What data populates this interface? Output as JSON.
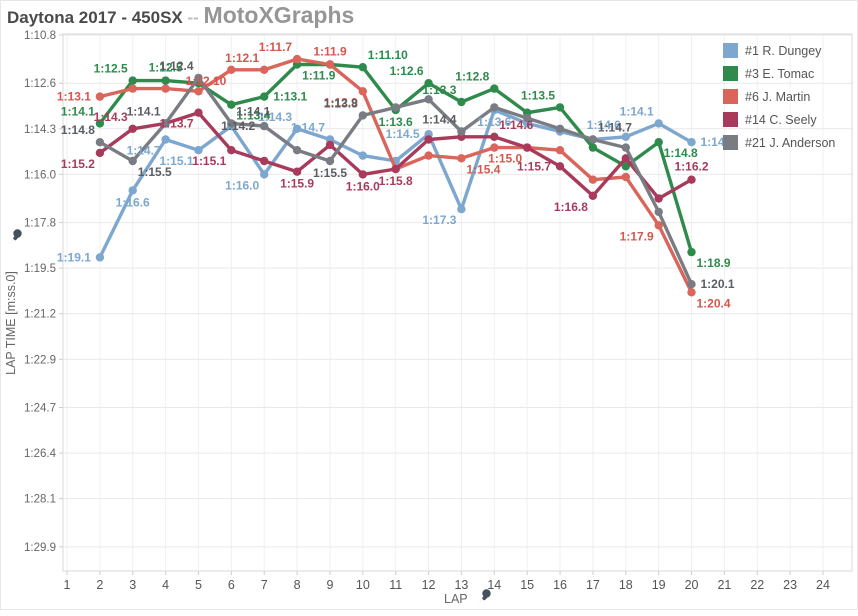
{
  "header": {
    "title_main": "Daytona 2017 - 450SX",
    "title_sep": " -- ",
    "title_brand": "MotoXGraphs"
  },
  "axes": {
    "x_title": "LAP",
    "y_title": "LAP TIME [m:ss.0]",
    "x_ticks": [
      1,
      2,
      3,
      4,
      5,
      6,
      7,
      8,
      9,
      10,
      11,
      12,
      13,
      14,
      15,
      16,
      17,
      18,
      19,
      20,
      21,
      22,
      23,
      24
    ],
    "y_ticks": [
      {
        "label": "1:10.8",
        "seconds": 70.8
      },
      {
        "label": "1:12.6",
        "seconds": 72.6
      },
      {
        "label": "1:14.3",
        "seconds": 74.3
      },
      {
        "label": "1:16.0",
        "seconds": 76.0
      },
      {
        "label": "1:17.8",
        "seconds": 77.8
      },
      {
        "label": "1:19.5",
        "seconds": 79.5
      },
      {
        "label": "1:21.2",
        "seconds": 81.2
      },
      {
        "label": "1:22.9",
        "seconds": 82.9
      },
      {
        "label": "1:24.7",
        "seconds": 84.7
      },
      {
        "label": "1:26.4",
        "seconds": 86.4
      },
      {
        "label": "1:28.1",
        "seconds": 88.1
      },
      {
        "label": "1:29.9",
        "seconds": 89.9
      }
    ]
  },
  "legend": {
    "items": [
      {
        "id": "dungey",
        "label": "#1 R. Dungey",
        "color": "#7DA7CE"
      },
      {
        "id": "tomac",
        "label": "#3 E. Tomac",
        "color": "#2E8B4C"
      },
      {
        "id": "martin",
        "label": "#6 J. Martin",
        "color": "#D9655B"
      },
      {
        "id": "seely",
        "label": "#14 C. Seely",
        "color": "#A83A5B"
      },
      {
        "id": "anderson",
        "label": "#21 J. Anderson",
        "color": "#797C82"
      }
    ]
  },
  "chart_data": {
    "type": "line",
    "title": "Daytona 2017 - 450SX",
    "xlabel": "LAP",
    "ylabel": "LAP TIME [m:ss.0]",
    "x_range": [
      1,
      24
    ],
    "y_axis_note": "lap time in seconds; axis runs fastest (70.8s = 1:10.8) at top to slowest (89.9s = 1:29.9) at bottom; laps plotted 2-20",
    "grid": true,
    "legend_position": "top-right overlay",
    "series": [
      {
        "id": "dungey",
        "name": "#1 R. Dungey",
        "color": "#7DA7CE",
        "label_color": "#7DA7CE",
        "points": [
          [
            2,
            79.1,
            "1:19.1",
            "left"
          ],
          [
            3,
            76.6,
            "1:16.6",
            "below"
          ],
          [
            4,
            74.7,
            "1:14.7",
            "below-left"
          ],
          [
            5,
            75.1,
            "1:15.1",
            "below-left"
          ],
          [
            6,
            74.2,
            "",
            ""
          ],
          [
            7,
            76.0,
            "1:16.0",
            "below-left"
          ],
          [
            8,
            74.3,
            "1:14.3",
            "above-left"
          ],
          [
            9,
            74.7,
            "1:14.7",
            "above-left"
          ],
          [
            10,
            75.3,
            "",
            ""
          ],
          [
            11,
            75.5,
            "",
            ""
          ],
          [
            12,
            74.5,
            "1:14.5",
            "left"
          ],
          [
            13,
            77.3,
            "1:17.3",
            "below-left"
          ],
          [
            14,
            73.6,
            "1:13.6",
            "below"
          ],
          [
            15,
            74.1,
            "",
            ""
          ],
          [
            16,
            74.4,
            "",
            ""
          ],
          [
            17,
            74.7,
            "",
            ""
          ],
          [
            18,
            74.6,
            "1:14.6",
            "above-left"
          ],
          [
            19,
            74.1,
            "1:14.1",
            "above-left"
          ],
          [
            20,
            74.8,
            "1:14.8",
            "right"
          ]
        ]
      },
      {
        "id": "tomac",
        "name": "#3 E. Tomac",
        "color": "#2E8B4C",
        "label_color": "#2E8B4C",
        "points": [
          [
            2,
            74.1,
            "1:14.1",
            "above-left"
          ],
          [
            3,
            72.5,
            "1:12.5",
            "above-left"
          ],
          [
            4,
            72.5,
            "1:12.5",
            "above"
          ],
          [
            5,
            72.6,
            "",
            ""
          ],
          [
            6,
            73.4,
            "1:13.4",
            "below-right"
          ],
          [
            7,
            73.1,
            "1:13.1",
            "right"
          ],
          [
            8,
            71.9,
            "1:11.9",
            "below-right"
          ],
          [
            9,
            71.9,
            "",
            ""
          ],
          [
            10,
            72.0,
            "1:11.10",
            "above-right"
          ],
          [
            11,
            73.6,
            "1:13.6",
            "below"
          ],
          [
            12,
            72.6,
            "1:12.6",
            "above-left"
          ],
          [
            13,
            73.3,
            "1:13.3",
            "above-left"
          ],
          [
            14,
            72.8,
            "1:12.8",
            "above-left"
          ],
          [
            15,
            73.7,
            "",
            ""
          ],
          [
            16,
            73.5,
            "1:13.5",
            "above-left"
          ],
          [
            17,
            75.0,
            "",
            ""
          ],
          [
            18,
            75.7,
            "",
            ""
          ],
          [
            19,
            74.8,
            "1:14.8",
            "below-right"
          ],
          [
            20,
            78.9,
            "1:18.9",
            "below-right"
          ]
        ]
      },
      {
        "id": "martin",
        "name": "#6 J. Martin",
        "color": "#D9655B",
        "label_color": "#D4574D",
        "points": [
          [
            2,
            73.1,
            "1:13.1",
            "left"
          ],
          [
            3,
            72.8,
            "",
            ""
          ],
          [
            4,
            72.8,
            "",
            ""
          ],
          [
            5,
            72.9,
            "",
            ""
          ],
          [
            6,
            72.1,
            "1:12.10",
            "below-left"
          ],
          [
            7,
            72.1,
            "1:12.1",
            "above-left"
          ],
          [
            8,
            71.7,
            "1:11.7",
            "above-left"
          ],
          [
            9,
            71.9,
            "1:11.9",
            "above"
          ],
          [
            10,
            72.9,
            "1:12.9",
            "below-left"
          ],
          [
            11,
            75.8,
            "",
            ""
          ],
          [
            12,
            75.3,
            "",
            ""
          ],
          [
            13,
            75.4,
            "1:15.4",
            "below-right"
          ],
          [
            14,
            75.0,
            "",
            ""
          ],
          [
            15,
            75.0,
            "1:15.0",
            "below-left"
          ],
          [
            16,
            75.1,
            "",
            ""
          ],
          [
            17,
            76.2,
            "",
            ""
          ],
          [
            18,
            76.1,
            "",
            ""
          ],
          [
            19,
            77.9,
            "1:17.9",
            "below-left"
          ],
          [
            20,
            80.4,
            "1:20.4",
            "below-right"
          ]
        ]
      },
      {
        "id": "seely",
        "name": "#14 C. Seely",
        "color": "#A83A5B",
        "label_color": "#A83A5B",
        "points": [
          [
            2,
            75.2,
            "1:15.2",
            "below-left"
          ],
          [
            3,
            74.3,
            "1:14.3",
            "above-left"
          ],
          [
            4,
            74.1,
            "",
            ""
          ],
          [
            5,
            73.7,
            "1:13.7",
            "below-left"
          ],
          [
            6,
            75.1,
            "1:15.1",
            "below-left"
          ],
          [
            7,
            75.5,
            "",
            ""
          ],
          [
            8,
            75.9,
            "1:15.9",
            "below"
          ],
          [
            9,
            74.9,
            "",
            ""
          ],
          [
            10,
            76.0,
            "1:16.0",
            "below"
          ],
          [
            11,
            75.8,
            "1:15.8",
            "below"
          ],
          [
            12,
            74.7,
            "",
            ""
          ],
          [
            13,
            74.6,
            "",
            ""
          ],
          [
            14,
            74.6,
            "1:14.6",
            "above-right"
          ],
          [
            15,
            75.0,
            "",
            ""
          ],
          [
            16,
            75.7,
            "1:15.7",
            "left"
          ],
          [
            17,
            76.8,
            "1:16.8",
            "below-left"
          ],
          [
            18,
            75.4,
            "",
            ""
          ],
          [
            19,
            76.9,
            "",
            ""
          ],
          [
            20,
            76.2,
            "1:16.2",
            "above"
          ]
        ]
      },
      {
        "id": "anderson",
        "name": "#21 J. Anderson",
        "color": "#797C82",
        "label_color": "#5A5D62",
        "points": [
          [
            2,
            74.8,
            "1:14.8",
            "above-left"
          ],
          [
            3,
            75.5,
            "1:15.5",
            "below-right"
          ],
          [
            4,
            74.1,
            "1:14.1",
            "above-left"
          ],
          [
            5,
            72.4,
            "1:12.4",
            "above-left"
          ],
          [
            6,
            74.1,
            "1:14.1",
            "above-right"
          ],
          [
            7,
            74.2,
            "1:14.2",
            "left"
          ],
          [
            8,
            75.1,
            "",
            ""
          ],
          [
            9,
            75.5,
            "1:15.5",
            "below"
          ],
          [
            10,
            73.8,
            "1:13.8",
            "above-left"
          ],
          [
            11,
            73.5,
            "",
            ""
          ],
          [
            12,
            73.2,
            "",
            ""
          ],
          [
            13,
            74.4,
            "1:14.4",
            "above-left"
          ],
          [
            14,
            73.5,
            "",
            ""
          ],
          [
            15,
            73.9,
            "",
            ""
          ],
          [
            16,
            74.3,
            "",
            ""
          ],
          [
            17,
            74.7,
            "1:14.7",
            "above-right"
          ],
          [
            18,
            75.0,
            "",
            ""
          ],
          [
            19,
            77.4,
            "",
            ""
          ],
          [
            20,
            80.1,
            "1:20.1",
            "right"
          ]
        ]
      }
    ]
  },
  "colors": {
    "grid_h": "#E9E9E9",
    "grid_v": "#F0F0F0",
    "plot_border": "#D8D8D8",
    "tick_text": "#666666",
    "x_tick_text": "#555555",
    "axis_title": "#666666",
    "pin": "#45515D"
  }
}
